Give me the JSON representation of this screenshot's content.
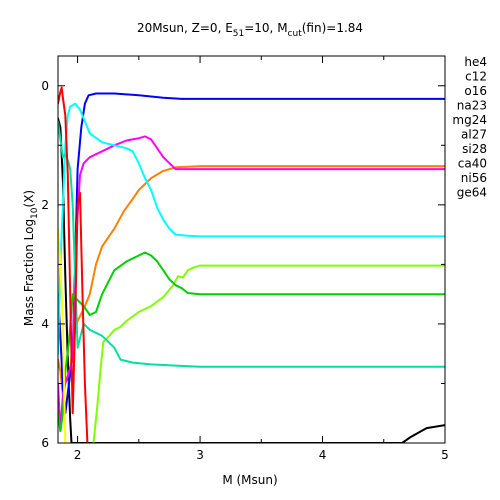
{
  "chart_data": {
    "type": "line",
    "title": {
      "prefix": "20Msun, Z=0, E",
      "sub1": "51",
      "mid": "=10, M",
      "sub2": "cut",
      "suffix": "(fin)=1.84"
    },
    "xlabel": "M (Msun)",
    "ylabel": {
      "prefix": "Mass Fraction Log",
      "sub": "10",
      "suffix": "(X)"
    },
    "xlim": [
      1.84,
      5.0
    ],
    "ylim": [
      -6.0,
      0.5
    ],
    "xticks": [
      2,
      3,
      4,
      5
    ],
    "xtick_labels": [
      "2",
      "3",
      "4",
      "5"
    ],
    "yticks": [
      0,
      -2,
      -4,
      -6
    ],
    "ytick_labels": [
      "0",
      "2",
      "4",
      "6"
    ],
    "grid": false,
    "legend_position": "right",
    "series": [
      {
        "name": "he4",
        "color": "#000000",
        "points": [
          [
            1.84,
            -0.55
          ],
          [
            1.86,
            -0.7
          ],
          [
            1.88,
            -1.6
          ],
          [
            1.9,
            -3.2
          ],
          [
            1.92,
            -4.6
          ],
          [
            1.94,
            -5.6
          ],
          [
            1.95,
            -6.0
          ],
          [
            4.65,
            -6.0
          ],
          [
            4.72,
            -5.9
          ],
          [
            4.85,
            -5.75
          ],
          [
            5.0,
            -5.7
          ]
        ]
      },
      {
        "name": "c12",
        "color": "#ff8000",
        "points": [
          [
            1.84,
            -4.6
          ],
          [
            1.86,
            -4.8
          ],
          [
            1.88,
            -5.2
          ],
          [
            1.9,
            -5.5
          ],
          [
            1.93,
            -5.0
          ],
          [
            1.96,
            -4.3
          ],
          [
            2.0,
            -3.95
          ],
          [
            2.05,
            -3.75
          ],
          [
            2.1,
            -3.5
          ],
          [
            2.15,
            -3.0
          ],
          [
            2.2,
            -2.7
          ],
          [
            2.25,
            -2.55
          ],
          [
            2.3,
            -2.4
          ],
          [
            2.38,
            -2.1
          ],
          [
            2.45,
            -1.9
          ],
          [
            2.5,
            -1.75
          ],
          [
            2.6,
            -1.55
          ],
          [
            2.7,
            -1.43
          ],
          [
            2.8,
            -1.37
          ],
          [
            2.9,
            -1.36
          ],
          [
            3.0,
            -1.35
          ],
          [
            5.0,
            -1.35
          ]
        ]
      },
      {
        "name": "o16",
        "color": "#0000ff",
        "points": [
          [
            1.84,
            -3.5
          ],
          [
            1.86,
            -4.2
          ],
          [
            1.88,
            -5.1
          ],
          [
            1.9,
            -5.5
          ],
          [
            1.93,
            -5.0
          ],
          [
            1.96,
            -4.5
          ],
          [
            1.98,
            -3.0
          ],
          [
            2.0,
            -1.4
          ],
          [
            2.03,
            -0.7
          ],
          [
            2.06,
            -0.3
          ],
          [
            2.09,
            -0.16
          ],
          [
            2.15,
            -0.13
          ],
          [
            2.3,
            -0.13
          ],
          [
            2.5,
            -0.16
          ],
          [
            2.7,
            -0.2
          ],
          [
            2.85,
            -0.22
          ],
          [
            3.0,
            -0.22
          ],
          [
            5.0,
            -0.22
          ]
        ]
      },
      {
        "name": "na23",
        "color": "#80ff00",
        "points": [
          [
            2.13,
            -6.0
          ],
          [
            2.16,
            -5.4
          ],
          [
            2.19,
            -4.7
          ],
          [
            2.21,
            -4.3
          ],
          [
            2.26,
            -4.2
          ],
          [
            2.3,
            -4.1
          ],
          [
            2.35,
            -4.05
          ],
          [
            2.4,
            -3.95
          ],
          [
            2.5,
            -3.8
          ],
          [
            2.6,
            -3.7
          ],
          [
            2.7,
            -3.55
          ],
          [
            2.78,
            -3.35
          ],
          [
            2.82,
            -3.2
          ],
          [
            2.86,
            -3.22
          ],
          [
            2.9,
            -3.1
          ],
          [
            2.95,
            -3.05
          ],
          [
            3.0,
            -3.02
          ],
          [
            5.0,
            -3.02
          ]
        ]
      },
      {
        "name": "mg24",
        "color": "#ff00ff",
        "points": [
          [
            1.84,
            -5.0
          ],
          [
            1.86,
            -5.8
          ],
          [
            1.88,
            -5.2
          ],
          [
            1.9,
            -5.0
          ],
          [
            1.93,
            -4.8
          ],
          [
            1.96,
            -4.6
          ],
          [
            1.99,
            -2.5
          ],
          [
            2.02,
            -1.5
          ],
          [
            2.05,
            -1.3
          ],
          [
            2.1,
            -1.2
          ],
          [
            2.2,
            -1.1
          ],
          [
            2.3,
            -1.0
          ],
          [
            2.4,
            -0.92
          ],
          [
            2.5,
            -0.88
          ],
          [
            2.55,
            -0.85
          ],
          [
            2.6,
            -0.9
          ],
          [
            2.65,
            -1.05
          ],
          [
            2.7,
            -1.2
          ],
          [
            2.75,
            -1.3
          ],
          [
            2.8,
            -1.4
          ],
          [
            2.9,
            -1.4
          ],
          [
            3.0,
            -1.4
          ],
          [
            5.0,
            -1.4
          ]
        ]
      },
      {
        "name": "al27",
        "color": "#00d000",
        "points": [
          [
            1.84,
            -5.5
          ],
          [
            1.86,
            -5.8
          ],
          [
            1.88,
            -5.5
          ],
          [
            1.9,
            -4.8
          ],
          [
            1.93,
            -4.3
          ],
          [
            1.96,
            -3.5
          ],
          [
            2.0,
            -3.6
          ],
          [
            2.05,
            -3.7
          ],
          [
            2.1,
            -3.85
          ],
          [
            2.15,
            -3.8
          ],
          [
            2.2,
            -3.5
          ],
          [
            2.3,
            -3.1
          ],
          [
            2.4,
            -2.95
          ],
          [
            2.5,
            -2.85
          ],
          [
            2.55,
            -2.8
          ],
          [
            2.6,
            -2.85
          ],
          [
            2.65,
            -2.95
          ],
          [
            2.7,
            -3.1
          ],
          [
            2.75,
            -3.25
          ],
          [
            2.8,
            -3.35
          ],
          [
            2.85,
            -3.4
          ],
          [
            2.9,
            -3.48
          ],
          [
            3.0,
            -3.5
          ],
          [
            5.0,
            -3.5
          ]
        ]
      },
      {
        "name": "si28",
        "color": "#00ffff",
        "points": [
          [
            1.84,
            -4.5
          ],
          [
            1.86,
            -3.0
          ],
          [
            1.88,
            -2.0
          ],
          [
            1.9,
            -1.0
          ],
          [
            1.92,
            -0.5
          ],
          [
            1.94,
            -0.35
          ],
          [
            1.98,
            -0.3
          ],
          [
            2.02,
            -0.4
          ],
          [
            2.06,
            -0.6
          ],
          [
            2.1,
            -0.8
          ],
          [
            2.2,
            -0.95
          ],
          [
            2.3,
            -1.0
          ],
          [
            2.4,
            -1.05
          ],
          [
            2.45,
            -1.1
          ],
          [
            2.5,
            -1.3
          ],
          [
            2.55,
            -1.55
          ],
          [
            2.6,
            -1.75
          ],
          [
            2.65,
            -2.05
          ],
          [
            2.7,
            -2.25
          ],
          [
            2.75,
            -2.4
          ],
          [
            2.8,
            -2.5
          ],
          [
            2.9,
            -2.52
          ],
          [
            3.0,
            -2.53
          ],
          [
            5.0,
            -2.53
          ]
        ]
      },
      {
        "name": "ca40",
        "color": "#00e0a0",
        "points": [
          [
            1.84,
            -0.6
          ],
          [
            1.86,
            -0.9
          ],
          [
            1.88,
            -1.2
          ],
          [
            1.9,
            -1.15
          ],
          [
            1.92,
            -1.25
          ],
          [
            1.94,
            -1.4
          ],
          [
            1.96,
            -2.0
          ],
          [
            1.98,
            -3.2
          ],
          [
            2.0,
            -4.4
          ],
          [
            2.05,
            -4.0
          ],
          [
            2.1,
            -4.1
          ],
          [
            2.2,
            -4.2
          ],
          [
            2.3,
            -4.4
          ],
          [
            2.35,
            -4.6
          ],
          [
            2.45,
            -4.65
          ],
          [
            2.6,
            -4.68
          ],
          [
            2.8,
            -4.7
          ],
          [
            3.0,
            -4.72
          ],
          [
            5.0,
            -4.72
          ]
        ]
      },
      {
        "name": "ni56",
        "color": "#ff0000",
        "points": [
          [
            1.84,
            -0.3
          ],
          [
            1.86,
            -0.1
          ],
          [
            1.87,
            -0.03
          ],
          [
            1.88,
            -0.2
          ],
          [
            1.9,
            -0.5
          ],
          [
            1.92,
            -1.5
          ],
          [
            1.94,
            -3.5
          ],
          [
            1.96,
            -5.5
          ],
          [
            1.98,
            -4.0
          ],
          [
            2.0,
            -2.0
          ],
          [
            2.02,
            -1.8
          ],
          [
            2.04,
            -3.5
          ],
          [
            2.06,
            -5.0
          ],
          [
            2.08,
            -6.0
          ]
        ]
      },
      {
        "name": "ge64",
        "color": "#ffff00",
        "points": [
          [
            1.84,
            -2.4
          ],
          [
            1.86,
            -3.0
          ],
          [
            1.88,
            -4.0
          ],
          [
            1.9,
            -6.0
          ]
        ]
      }
    ]
  }
}
